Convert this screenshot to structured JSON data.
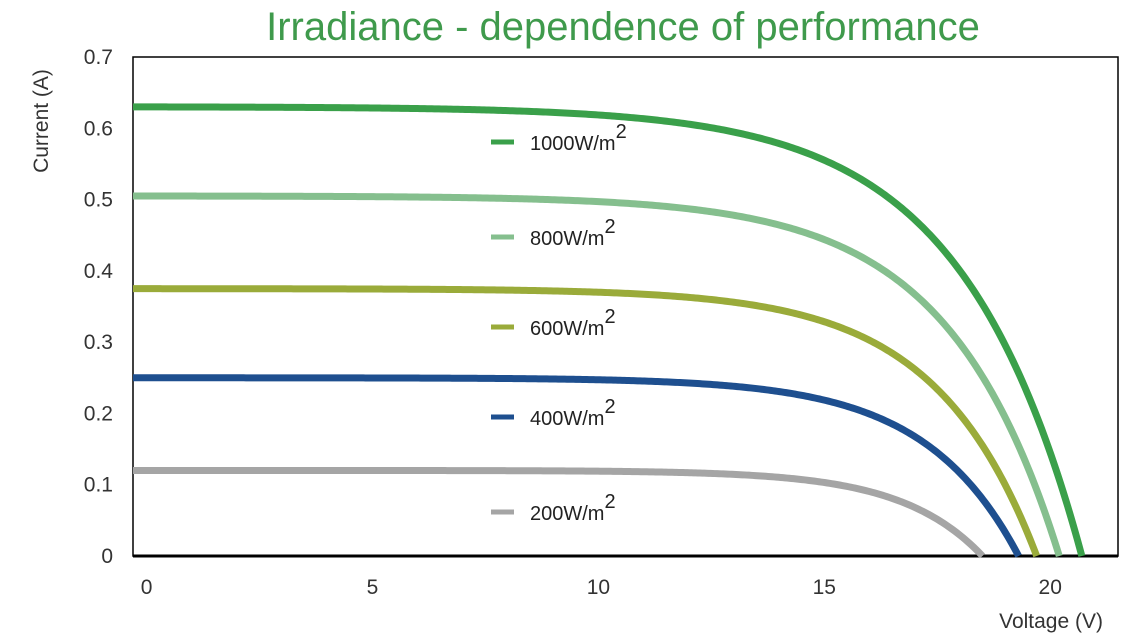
{
  "chart_data": {
    "type": "line",
    "title": "Irradiance - dependence of performance",
    "xlabel": "Voltage (V)",
    "ylabel": "Current (A)",
    "xlim": [
      -0.3,
      21.5
    ],
    "ylim": [
      0,
      0.7
    ],
    "x_ticks": [
      0,
      5,
      10,
      15,
      20
    ],
    "y_ticks": [
      0,
      0.1,
      0.2,
      0.3,
      0.4,
      0.5,
      0.6,
      0.7
    ],
    "x_tick_labels": [
      "0",
      "5",
      "10",
      "15",
      "20"
    ],
    "y_tick_labels": [
      "0",
      "0.1",
      "0.2",
      "0.3",
      "0.4",
      "0.5",
      "0.6",
      "0.7"
    ],
    "grid": false,
    "legend_position": "center",
    "series": [
      {
        "name": "1000W/m2",
        "label": "1000W/m",
        "sup": "2",
        "color": "#3aa04a",
        "isc": 0.63,
        "voc": 20.7,
        "knee": 13.2
      },
      {
        "name": "800W/m2",
        "label": "800W/m",
        "sup": "2",
        "color": "#85bf8e",
        "isc": 0.505,
        "voc": 20.2,
        "knee": 13.3
      },
      {
        "name": "600W/m2",
        "label": "600W/m",
        "sup": "2",
        "color": "#9aab3a",
        "isc": 0.375,
        "voc": 19.7,
        "knee": 13.4
      },
      {
        "name": "400W/m2",
        "label": "400W/m",
        "sup": "2",
        "color": "#1e4f8f",
        "isc": 0.25,
        "voc": 19.3,
        "knee": 13.5
      },
      {
        "name": "200W/m2",
        "label": "200W/m",
        "sup": "2",
        "color": "#a5a5a5",
        "isc": 0.12,
        "voc": 18.5,
        "knee": 13.5
      }
    ]
  },
  "colors": {
    "title": "#3f9a4c",
    "axis": "#000000"
  }
}
